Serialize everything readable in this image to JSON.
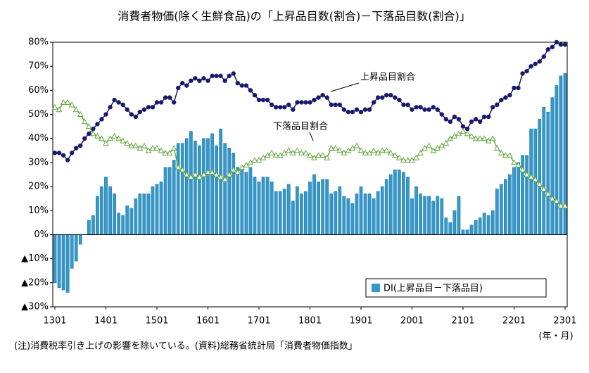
{
  "chart_data": {
    "type": "bar_line",
    "title": "消費者物価(除く生鮮食品)の「上昇品目数(割合)－下落品目数(割合)」",
    "x_unit_label": "(年・月)",
    "footnote": "(注)消費税率引き上げの影響を除いている。(資料)総務省統計局「消費者物価指数」",
    "categories": [
      "1301",
      null,
      null,
      null,
      null,
      null,
      null,
      null,
      null,
      null,
      null,
      null,
      "1401",
      null,
      null,
      null,
      null,
      null,
      null,
      null,
      null,
      null,
      null,
      null,
      "1501",
      null,
      null,
      null,
      null,
      null,
      null,
      null,
      null,
      null,
      null,
      null,
      "1601",
      null,
      null,
      null,
      null,
      null,
      null,
      null,
      null,
      null,
      null,
      null,
      "1701",
      null,
      null,
      null,
      null,
      null,
      null,
      null,
      null,
      null,
      null,
      null,
      "1801",
      null,
      null,
      null,
      null,
      null,
      null,
      null,
      null,
      null,
      null,
      null,
      "1901",
      null,
      null,
      null,
      null,
      null,
      null,
      null,
      null,
      null,
      null,
      null,
      "2001",
      null,
      null,
      null,
      null,
      null,
      null,
      null,
      null,
      null,
      null,
      null,
      "2101",
      null,
      null,
      null,
      null,
      null,
      null,
      null,
      null,
      null,
      null,
      null,
      "2201",
      null,
      null,
      null,
      null,
      null,
      null,
      null,
      null,
      null,
      null,
      null,
      "2301"
    ],
    "series": [
      {
        "name": "DI(上昇品目－下落品目)",
        "kind": "bar",
        "color": "#3399cc",
        "values": [
          -20,
          -22,
          -23,
          -24,
          -14,
          -11,
          -4,
          0,
          6,
          8,
          16,
          20,
          24,
          20,
          17,
          9,
          8,
          12,
          11,
          15,
          17,
          17,
          17,
          20,
          21,
          22,
          28,
          28,
          31,
          38,
          38,
          40,
          43,
          39,
          37,
          40,
          40,
          42,
          37,
          44,
          38,
          36,
          34,
          28,
          27,
          26,
          28,
          24,
          22,
          24,
          24,
          22,
          18,
          18,
          19,
          21,
          14,
          20,
          17,
          18,
          22,
          25,
          22,
          23,
          23,
          17,
          18,
          20,
          16,
          15,
          13,
          17,
          20,
          17,
          17,
          15,
          18,
          20,
          23,
          25,
          27,
          27,
          26,
          24,
          15,
          20,
          17,
          16,
          16,
          14,
          16,
          15,
          7,
          5,
          10,
          16,
          2,
          2,
          4,
          6,
          7,
          9,
          8,
          10,
          19,
          21,
          23,
          25,
          28,
          30,
          33,
          33,
          44,
          44,
          48,
          53,
          51,
          57,
          62,
          66,
          67
        ]
      },
      {
        "name": "上昇品目割合",
        "kind": "line",
        "marker": "circle",
        "color": "#1a1a6e",
        "values": [
          34,
          34,
          33,
          31,
          34,
          36,
          37,
          40,
          42,
          44,
          46,
          48,
          50,
          53,
          56,
          55,
          54,
          52,
          50,
          49,
          51,
          52,
          53,
          53,
          55,
          55,
          57,
          57,
          55,
          61,
          63,
          62,
          64,
          65,
          64,
          65,
          64,
          66,
          66,
          66,
          64,
          66,
          67,
          63,
          62,
          62,
          60,
          58,
          56,
          56,
          56,
          54,
          53,
          53,
          53,
          54,
          52,
          55,
          55,
          55,
          55,
          56,
          57,
          58,
          57,
          54,
          54,
          54,
          52,
          51,
          51,
          52,
          51,
          52,
          52,
          55,
          57,
          57,
          58,
          58,
          57,
          56,
          54,
          54,
          52,
          53,
          53,
          52,
          52,
          53,
          52,
          50,
          48,
          47,
          49,
          48,
          45,
          44,
          47,
          48,
          47,
          49,
          49,
          53,
          54,
          56,
          57,
          58,
          61,
          61,
          67,
          68,
          70,
          71,
          72,
          74,
          77,
          78,
          80,
          79,
          79
        ]
      },
      {
        "name": "下落品目割合",
        "kind": "line",
        "marker": "triangle",
        "color": "#66aa44",
        "values": [
          53,
          52,
          55,
          55,
          54,
          52,
          50,
          47,
          45,
          42,
          41,
          40,
          38,
          40,
          41,
          40,
          39,
          38,
          37,
          37,
          36,
          37,
          35,
          36,
          36,
          35,
          34,
          34,
          36,
          28,
          27,
          25,
          24,
          25,
          24,
          25,
          26,
          26,
          25,
          24,
          23,
          25,
          27,
          26,
          28,
          29,
          30,
          31,
          31,
          32,
          33,
          34,
          33,
          33,
          34,
          35,
          34,
          35,
          34,
          34,
          33,
          32,
          33,
          33,
          32,
          36,
          36,
          35,
          34,
          35,
          36,
          37,
          35,
          34,
          34,
          35,
          34,
          35,
          35,
          34,
          33,
          32,
          31,
          31,
          31,
          32,
          34,
          36,
          37,
          35,
          36,
          37,
          38,
          40,
          41,
          42,
          43,
          42,
          41,
          40,
          40,
          40,
          39,
          40,
          36,
          34,
          33,
          33,
          30,
          29,
          27,
          25,
          24,
          23,
          21,
          19,
          17,
          15,
          14,
          12,
          12
        ]
      }
    ],
    "ylim": [
      -30,
      80
    ],
    "yticks": [
      {
        "value": -30,
        "label": "▲30%"
      },
      {
        "value": -20,
        "label": "▲20%"
      },
      {
        "value": -10,
        "label": "▲10%"
      },
      {
        "value": 0,
        "label": "0%"
      },
      {
        "value": 10,
        "label": "10%"
      },
      {
        "value": 20,
        "label": "20%"
      },
      {
        "value": 30,
        "label": "30%"
      },
      {
        "value": 40,
        "label": "40%"
      },
      {
        "value": 50,
        "label": "50%"
      },
      {
        "value": 60,
        "label": "60%"
      },
      {
        "value": 70,
        "label": "70%"
      },
      {
        "value": 80,
        "label": "80%"
      }
    ]
  }
}
